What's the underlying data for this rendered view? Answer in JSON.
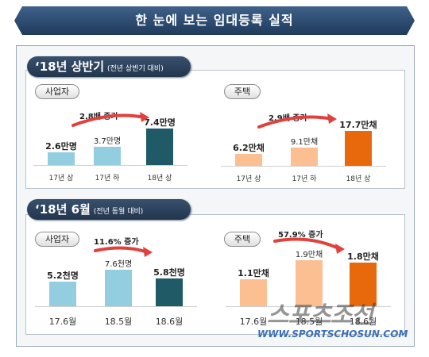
{
  "header": {
    "title": "한 눈에 보는 임대등록 실적"
  },
  "sections": [
    {
      "title": "‘18년 상반기",
      "subtitle": "(전년 상반기 대비)"
    },
    {
      "title": "‘18년 6월",
      "subtitle": "(전년 동월 대비)"
    }
  ],
  "colors": {
    "banner": "#2b4a6f",
    "section_title": "#2a3e58",
    "operator_light": "#92cde0",
    "operator_dark": "#1f5a66",
    "housing_light": "#fbbf92",
    "housing_dark": "#e8690b",
    "arrow": "#e0413d"
  },
  "watermark": {
    "logo": "스포츠조선",
    "url": "WWW.SPORTSCHOSUN.COM"
  },
  "chart_data": [
    {
      "type": "bar",
      "panel": "사업자",
      "categories": [
        "17년 상",
        "17년 하",
        "18년 상"
      ],
      "values": [
        2.6,
        3.7,
        7.4
      ],
      "value_labels": [
        "2.6만명",
        "3.7만명",
        "7.4만명"
      ],
      "unit": "만명",
      "growth_label": "2.8배 증가"
    },
    {
      "type": "bar",
      "panel": "주택",
      "categories": [
        "17년 상",
        "17년 하",
        "18년 상"
      ],
      "values": [
        6.2,
        9.1,
        17.7
      ],
      "value_labels": [
        "6.2만채",
        "9.1만채",
        "17.7만채"
      ],
      "unit": "만채",
      "growth_label": "2.9배 증가"
    },
    {
      "type": "bar",
      "panel": "사업자",
      "categories": [
        "17.6월",
        "18.5월",
        "18.6월"
      ],
      "values": [
        5.2,
        7.6,
        5.8
      ],
      "value_labels": [
        "5.2천명",
        "7.6천명",
        "5.8천명"
      ],
      "unit": "천명",
      "growth_label": "11.6% 증가"
    },
    {
      "type": "bar",
      "panel": "주택",
      "categories": [
        "17.6월",
        "18.5월",
        "18.6월"
      ],
      "values": [
        1.1,
        1.9,
        1.8
      ],
      "value_labels": [
        "1.1만채",
        "1.9만채",
        "1.8만채"
      ],
      "unit": "만채",
      "growth_label": "57.9% 증가"
    }
  ]
}
